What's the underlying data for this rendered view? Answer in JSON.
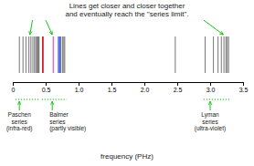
{
  "chart_data": {
    "type": "spectrum",
    "title": "Lines get closer and closer together\nand eventually reach the \"series limit\".",
    "x_label": "frequency (PHz)",
    "xlim": [
      0,
      3.5
    ],
    "xticks": [
      0,
      0.5,
      {
        "value": 1.0,
        "label": "1.0"
      },
      1.5,
      {
        "value": 2.0,
        "label": "2.0"
      },
      2.5,
      {
        "value": 3.0,
        "label": "3.0"
      },
      3.5
    ],
    "series": [
      {
        "color": "#666666",
        "values": [
          0.1,
          0.155,
          0.2,
          0.245,
          0.275,
          0.305,
          0.33,
          0.35,
          0.365,
          0.38,
          0.39,
          0.4
        ]
      },
      {
        "colors": [
          "#cc0000",
          "#cc77cc",
          "#7799ff",
          "#4455ff"
        ],
        "values": [
          0.457,
          0.617,
          0.691,
          0.71
        ]
      },
      {
        "color": "#666666",
        "values": [
          0.73,
          0.755,
          0.775,
          0.79
        ]
      },
      {
        "color": "#666666",
        "values": [
          2.47
        ]
      },
      {
        "color": "#666666",
        "values": [
          2.924,
          3.05,
          3.12,
          3.17,
          3.21,
          3.24,
          3.26,
          3.28
        ]
      }
    ],
    "annotations": [
      {
        "text": "Paschen\nseries\n(infra-red)",
        "x": 0.1,
        "x_range": [
          0.04,
          0.41
        ],
        "color": "#00bb00",
        "line_style": "dotted"
      },
      {
        "text": "Balmer\nseries\n(partly visible)",
        "x": 0.6,
        "x_range": [
          0.44,
          0.82
        ],
        "color": "#00bb00",
        "line_style": "dotted"
      },
      {
        "text": "Lyman\nseries\n(ultra-violet)",
        "x": 3.0,
        "x_range": [
          2.9,
          3.3
        ],
        "color": "#00bb00",
        "line_style": "dotted"
      }
    ],
    "pointers": [
      {
        "from_x": 0.3,
        "to_x": 0.26,
        "color": "#00bb00"
      },
      {
        "from_x": 0.5,
        "to_x": 0.6,
        "color": "#00bb00"
      },
      {
        "from_x": 2.9,
        "to_x": 3.2,
        "color": "#00bb00"
      }
    ]
  }
}
